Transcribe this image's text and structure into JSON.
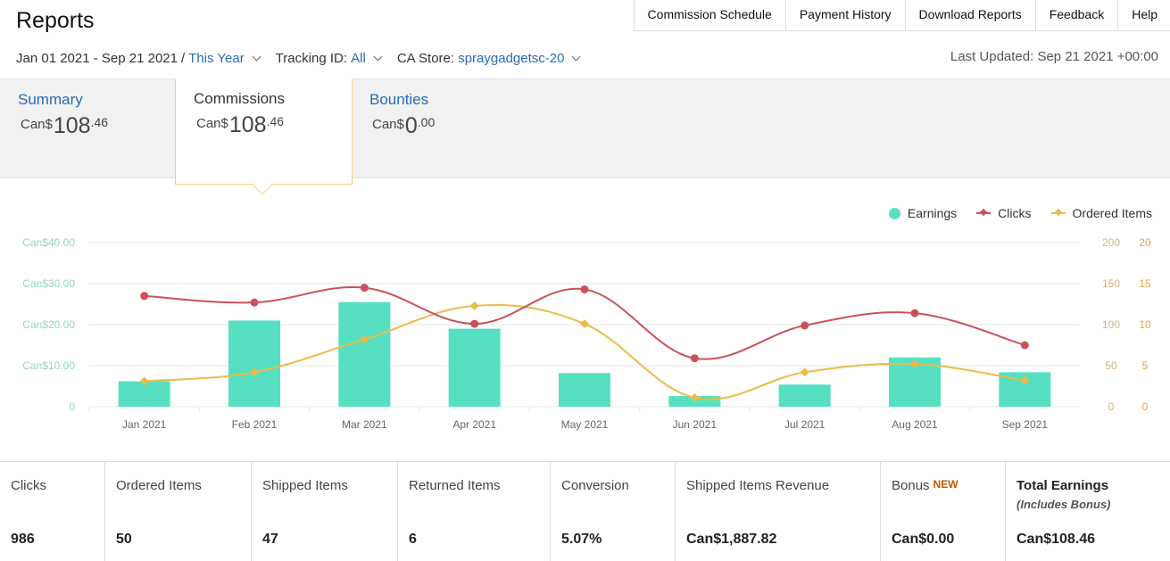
{
  "page": {
    "title": "Reports"
  },
  "nav": {
    "items": [
      "Commission Schedule",
      "Payment History",
      "Download Reports",
      "Feedback",
      "Help"
    ]
  },
  "filters": {
    "date_range": "Jan 01 2021 - Sep 21 2021",
    "separator": "/",
    "period": "This Year",
    "tracking_label": "Tracking ID:",
    "tracking_value": "All",
    "store_label": "CA Store:",
    "store_value": "spraygadgetsc-20"
  },
  "last_updated": "Last Updated: Sep 21 2021 +00:00",
  "tabs": [
    {
      "label": "Summary",
      "currency": "Can$",
      "whole": "108",
      "cents": ".46"
    },
    {
      "label": "Commissions",
      "currency": "Can$",
      "whole": "108",
      "cents": ".46",
      "active": true
    },
    {
      "label": "Bounties",
      "currency": "Can$",
      "whole": "0",
      "cents": ".00"
    }
  ],
  "legend": {
    "earnings": "Earnings",
    "clicks": "Clicks",
    "ordered": "Ordered Items"
  },
  "colors": {
    "earnings": "#56e0c1",
    "clicks": "#c9525a",
    "ordered": "#ebbb4a",
    "left_axis": "#8fd7b9",
    "right_axis_clicks": "#d8b07a",
    "right_axis_ordered": "#e6a24a",
    "link": "#2a6bb3"
  },
  "chart_data": {
    "type": "bar",
    "categories": [
      "Jan 2021",
      "Feb 2021",
      "Mar 2021",
      "Apr 2021",
      "May 2021",
      "Jun 2021",
      "Jul 2021",
      "Aug 2021",
      "Sep 2021"
    ],
    "left_axis_ticks": [
      "0",
      "Can$10.00",
      "Can$20.00",
      "Can$30.00",
      "Can$40.00"
    ],
    "left_ylim": [
      0,
      40
    ],
    "right_axis_clicks_ticks": [
      "0",
      "50",
      "100",
      "150",
      "200"
    ],
    "right_clicks_ylim": [
      0,
      200
    ],
    "right_axis_ordered_ticks": [
      "0",
      "5",
      "10",
      "15",
      "20"
    ],
    "right_ordered_ylim": [
      0,
      20
    ],
    "series": [
      {
        "name": "Earnings",
        "type": "bar",
        "axis": "left",
        "values": [
          6.2,
          21.0,
          25.5,
          19.0,
          8.2,
          2.6,
          5.4,
          12.0,
          8.4
        ]
      },
      {
        "name": "Clicks",
        "type": "line",
        "axis": "right_clicks",
        "values": [
          135,
          127,
          145,
          101,
          143,
          59,
          99,
          114,
          75
        ]
      },
      {
        "name": "Ordered Items",
        "type": "line",
        "axis": "right_ordered",
        "values": [
          3.1,
          4.2,
          8.2,
          12.3,
          10.1,
          1.1,
          4.2,
          5.2,
          3.2
        ]
      }
    ],
    "grid": true,
    "legend_position": "top-right"
  },
  "stats": [
    {
      "label": "Clicks",
      "value": "986"
    },
    {
      "label": "Ordered Items",
      "value": "50"
    },
    {
      "label": "Shipped Items",
      "value": "47"
    },
    {
      "label": "Returned Items",
      "value": "6"
    },
    {
      "label": "Conversion",
      "value": "5.07%"
    },
    {
      "label": "Shipped Items Revenue",
      "value": "Can$1,887.82"
    },
    {
      "label": "Bonus",
      "badge": "NEW",
      "value": "Can$0.00"
    },
    {
      "label": "Total Earnings",
      "sub": "(Includes Bonus)",
      "value": "Can$108.46"
    }
  ]
}
